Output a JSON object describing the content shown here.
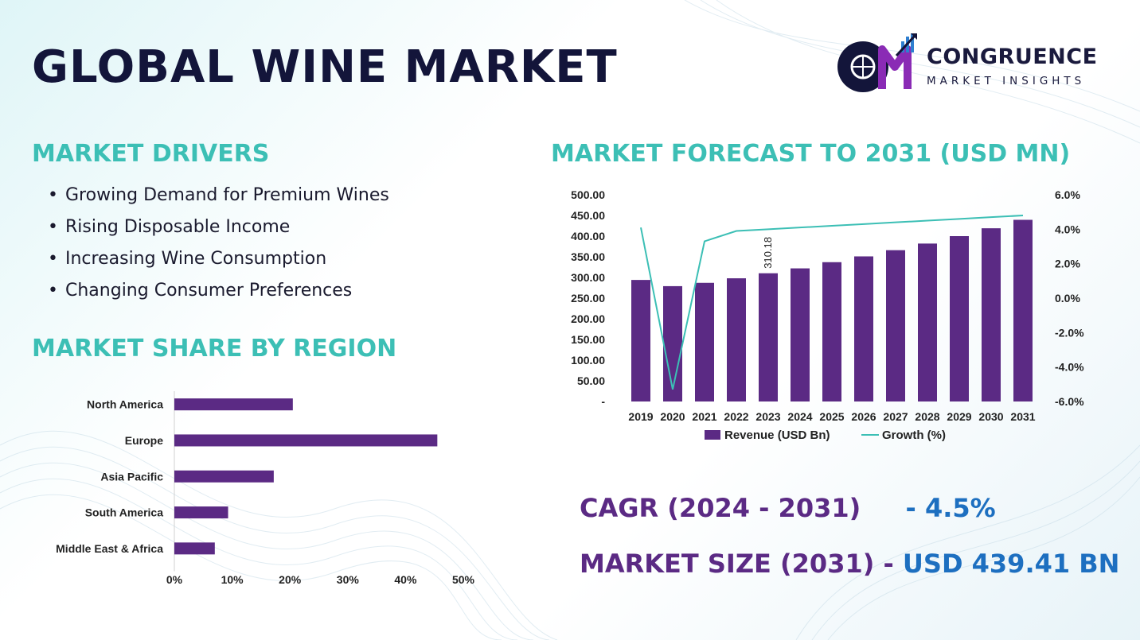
{
  "header": {
    "title": "GLOBAL WINE MARKET"
  },
  "logo": {
    "name": "CONGRUENCE",
    "subtitle": "MARKET INSIGHTS",
    "monogram": "CM"
  },
  "drivers": {
    "title": "MARKET DRIVERS",
    "items": [
      "Growing Demand for Premium Wines",
      "Rising Disposable Income",
      "Increasing Wine Consumption",
      "Changing Consumer Preferences"
    ]
  },
  "region": {
    "title": "MARKET SHARE BY REGION"
  },
  "forecast": {
    "title": "MARKET FORECAST TO 2031 (USD MN)"
  },
  "cagr": {
    "label": "CAGR (2024 - 2031)",
    "value": "- 4.5%"
  },
  "market_size": {
    "label": "MARKET SIZE (2031)",
    "sep": " - ",
    "value": "USD 439.41 BN"
  },
  "colors": {
    "bar": "#5b2a84",
    "line": "#3cbfb5",
    "accent": "#3cbfb5",
    "title": "#13153a",
    "value_blue": "#1d6fc0"
  },
  "chart_data": [
    {
      "type": "bar",
      "orientation": "horizontal",
      "categories": [
        "North America",
        "Europe",
        "Asia Pacific",
        "South America",
        "Middle East & Africa"
      ],
      "values": [
        20.5,
        45.5,
        17.2,
        9.3,
        7.0
      ],
      "xlim": [
        0,
        50
      ],
      "xticks": [
        "0%",
        "10%",
        "20%",
        "30%",
        "40%",
        "50%"
      ],
      "grid": false
    },
    {
      "type": "bar",
      "categories": [
        "2019",
        "2020",
        "2021",
        "2022",
        "2023",
        "2024",
        "2025",
        "2026",
        "2027",
        "2028",
        "2029",
        "2030",
        "2031"
      ],
      "series": [
        {
          "name": "Revenue (USD Bn)",
          "type": "bar",
          "axis": "left",
          "values": [
            294,
            279,
            287,
            298,
            310.18,
            322,
            337,
            351,
            366,
            382,
            400,
            419,
            439.41
          ]
        },
        {
          "name": "Growth (%)",
          "type": "line",
          "axis": "right",
          "values": [
            4.1,
            -5.3,
            3.3,
            3.9,
            4.0,
            4.1,
            4.2,
            4.3,
            4.4,
            4.5,
            4.6,
            4.7,
            4.8
          ]
        }
      ],
      "data_labels": [
        {
          "index": 4,
          "text": "310.18"
        }
      ],
      "ylim": [
        0,
        500
      ],
      "yticks": [
        "-",
        "50.00",
        "100.00",
        "150.00",
        "200.00",
        "250.00",
        "300.00",
        "350.00",
        "400.00",
        "450.00",
        "500.00"
      ],
      "y2lim": [
        -6,
        6
      ],
      "y2ticks": [
        "-6.0%",
        "-4.0%",
        "-2.0%",
        "0.0%",
        "2.0%",
        "4.0%",
        "6.0%"
      ],
      "legend": "bottom",
      "grid": false
    }
  ]
}
